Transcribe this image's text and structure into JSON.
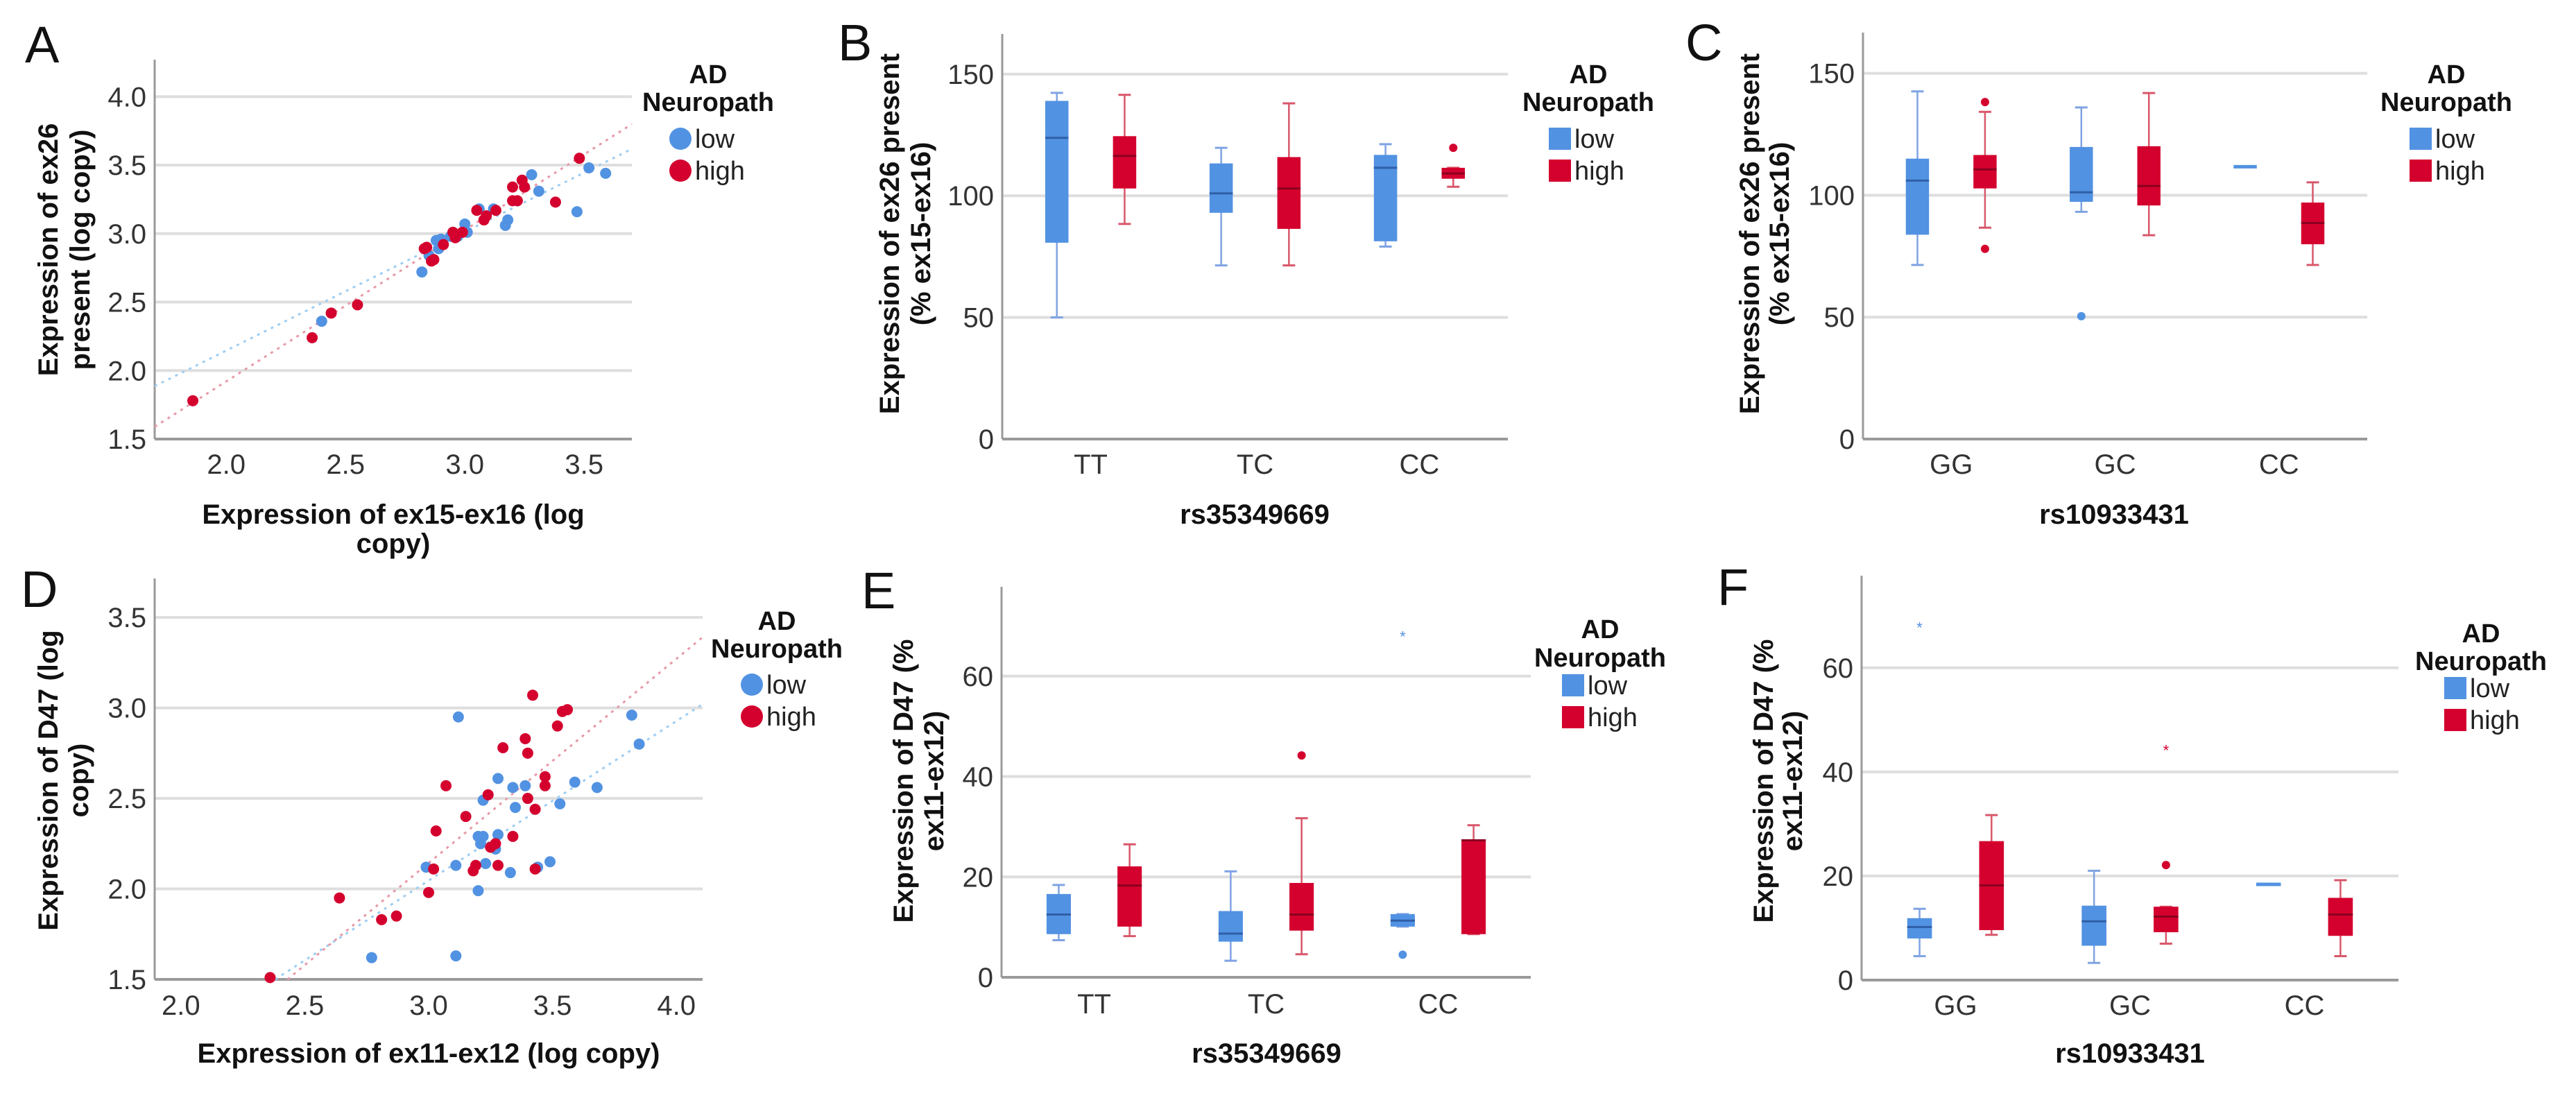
{
  "colors": {
    "low": "#5292e2",
    "high": "#d4002e",
    "low_whisker": "#7fa3e3",
    "high_whisker": "#d8576a",
    "low_fit": "#9fcdf2",
    "high_fit": "#e79aa8",
    "grid": "#dedede",
    "axis": "#9a9a9a"
  },
  "chart_data": [
    {
      "panel": "A",
      "type": "scatter",
      "xlabel": [
        "Expression of ex15-ex16 (log",
        "copy)"
      ],
      "ylabel": [
        "Expression of ex26",
        "present (log copy)"
      ],
      "xlim": [
        1.7,
        3.7
      ],
      "ylim": [
        1.5,
        4.27
      ],
      "x_ticks": [
        2.0,
        2.5,
        3.0,
        3.5
      ],
      "x_tick_labels": [
        "2.0",
        "2.5",
        "3.0",
        "3.5"
      ],
      "y_ticks": [
        1.5,
        2.0,
        2.5,
        3.0,
        3.5,
        4.0
      ],
      "y_tick_labels": [
        "1.5",
        "2.0",
        "2.5",
        "3.0",
        "3.5",
        "4.0"
      ],
      "grid": true,
      "legend": {
        "title": [
          "AD",
          "Neuropath"
        ],
        "placement": "right",
        "items": [
          "low",
          "high"
        ]
      },
      "series": [
        {
          "name": "low",
          "points": [
            [
              2.4,
              2.36
            ],
            [
              2.82,
              2.72
            ],
            [
              2.85,
              2.84
            ],
            [
              2.88,
              2.95
            ],
            [
              2.9,
              2.96
            ],
            [
              2.89,
              2.89
            ],
            [
              2.94,
              2.98
            ],
            [
              2.97,
              2.98
            ],
            [
              3.0,
              3.07
            ],
            [
              3.01,
              3.01
            ],
            [
              3.06,
              3.18
            ],
            [
              3.12,
              3.18
            ],
            [
              3.17,
              3.06
            ],
            [
              3.18,
              3.1
            ],
            [
              3.28,
              3.43
            ],
            [
              3.31,
              3.31
            ],
            [
              3.47,
              3.16
            ],
            [
              3.52,
              3.48
            ],
            [
              3.59,
              3.44
            ]
          ],
          "fit": {
            "slope": 0.866,
            "intercept": 0.414
          }
        },
        {
          "name": "high",
          "points": [
            [
              1.86,
              1.78
            ],
            [
              2.36,
              2.24
            ],
            [
              2.44,
              2.42
            ],
            [
              2.55,
              2.48
            ],
            [
              2.83,
              2.89
            ],
            [
              2.84,
              2.9
            ],
            [
              2.86,
              2.8
            ],
            [
              2.87,
              2.81
            ],
            [
              2.91,
              2.92
            ],
            [
              2.95,
              3.01
            ],
            [
              2.96,
              2.97
            ],
            [
              2.99,
              3.01
            ],
            [
              3.05,
              3.17
            ],
            [
              3.08,
              3.1
            ],
            [
              3.09,
              3.13
            ],
            [
              3.13,
              3.17
            ],
            [
              3.2,
              3.24
            ],
            [
              3.22,
              3.24
            ],
            [
              3.2,
              3.34
            ],
            [
              3.24,
              3.39
            ],
            [
              3.25,
              3.34
            ],
            [
              3.38,
              3.23
            ],
            [
              3.48,
              3.55
            ]
          ],
          "fit": {
            "slope": 1.105,
            "intercept": -0.289
          }
        }
      ]
    },
    {
      "panel": "B",
      "type": "boxplot",
      "xlabel": [
        "rs35349669"
      ],
      "ylabel": [
        "Expression of ex26 present",
        "(% ex15-ex16)"
      ],
      "categories": [
        "TT",
        "TC",
        "CC"
      ],
      "ylim": [
        0,
        166.5
      ],
      "y_ticks": [
        0,
        50,
        100,
        150
      ],
      "y_tick_labels": [
        "0",
        "50",
        "100",
        "150"
      ],
      "grid": true,
      "legend": {
        "title": [
          "AD",
          "Neuropath"
        ],
        "placement": "right",
        "items": [
          "low",
          "high"
        ]
      },
      "series": [
        {
          "name": "low",
          "boxes": [
            {
              "min": 50,
              "q1": 80.7,
              "median": 123.8,
              "q3": 139,
              "max": 142.3,
              "outliers": []
            },
            {
              "min": 71.4,
              "q1": 93,
              "median": 101,
              "q3": 113.3,
              "max": 119.7,
              "outliers": []
            },
            {
              "min": 79.1,
              "q1": 81.3,
              "median": 111.5,
              "q3": 116.8,
              "max": 121.2,
              "outliers": []
            }
          ]
        },
        {
          "name": "high",
          "boxes": [
            {
              "min": 88.4,
              "q1": 103,
              "median": 116.4,
              "q3": 124.5,
              "max": 141.5,
              "outliers": []
            },
            {
              "min": 71.4,
              "q1": 86.4,
              "median": 103,
              "q3": 115.9,
              "max": 138,
              "outliers": []
            },
            {
              "min": 103.7,
              "q1": 107,
              "median": 109.2,
              "q3": 111.5,
              "max": 111.5,
              "outliers": [
                {
                  "value": 119.7,
                  "marker": "circle"
                }
              ]
            }
          ]
        }
      ]
    },
    {
      "panel": "C",
      "type": "boxplot",
      "xlabel": [
        "rs10933431"
      ],
      "ylabel": [
        "Expression of ex26 present",
        "(% ex15-ex16)"
      ],
      "categories": [
        "GG",
        "GC",
        "CC"
      ],
      "ylim": [
        0,
        166.7
      ],
      "y_ticks": [
        0,
        50,
        100,
        150
      ],
      "y_tick_labels": [
        "0",
        "50",
        "100",
        "150"
      ],
      "grid": true,
      "legend": {
        "title": [
          "AD",
          "Neuropath"
        ],
        "placement": "right",
        "items": [
          "low",
          "high"
        ]
      },
      "series": [
        {
          "name": "low",
          "boxes": [
            {
              "min": 71.4,
              "q1": 83.8,
              "median": 106,
              "q3": 115,
              "max": 142.6,
              "outliers": []
            },
            {
              "min": 93.2,
              "q1": 97.3,
              "median": 101.2,
              "q3": 119.8,
              "max": 136,
              "outliers": [
                {
                  "value": 50.4,
                  "marker": "circle"
                }
              ]
            },
            {
              "min": 111.7,
              "q1": 111.7,
              "median": 111.7,
              "q3": 111.7,
              "max": 111.7,
              "outliers": []
            }
          ]
        },
        {
          "name": "high",
          "boxes": [
            {
              "min": 86.7,
              "q1": 102.8,
              "median": 110.6,
              "q3": 116.5,
              "max": 134.2,
              "outliers": [
                {
                  "value": 138.2,
                  "marker": "circle"
                },
                {
                  "value": 78,
                  "marker": "circle"
                }
              ]
            },
            {
              "min": 83.6,
              "q1": 95.8,
              "median": 103.8,
              "q3": 120.1,
              "max": 141.9,
              "outliers": []
            },
            {
              "min": 71.4,
              "q1": 79.9,
              "median": 88.6,
              "q3": 97,
              "max": 105.3,
              "outliers": []
            }
          ]
        }
      ]
    },
    {
      "panel": "D",
      "type": "scatter",
      "xlabel": [
        "Expression of ex11-ex12 (log copy)"
      ],
      "ylabel": [
        "Expression of D47 (log",
        "copy)"
      ],
      "xlim": [
        1.894,
        4.106
      ],
      "ylim": [
        1.5,
        3.715
      ],
      "x_ticks": [
        2.0,
        2.5,
        3.0,
        3.5,
        4.0
      ],
      "x_tick_labels": [
        "2.0",
        "2.5",
        "3.0",
        "3.5",
        "4.0"
      ],
      "y_ticks": [
        1.5,
        2.0,
        2.5,
        3.0,
        3.5
      ],
      "y_tick_labels": [
        "1.5",
        "2.0",
        "2.5",
        "3.0",
        "3.5"
      ],
      "grid": true,
      "legend": {
        "title": [
          "AD",
          "Neuropath"
        ],
        "placement": "right",
        "items": [
          "low",
          "high"
        ]
      },
      "series": [
        {
          "name": "low",
          "points": [
            [
              3.12,
              2.95
            ],
            [
              2.77,
              1.62
            ],
            [
              3.11,
              1.63
            ],
            [
              3.82,
              2.96
            ],
            [
              3.85,
              2.8
            ],
            [
              3.28,
              2.61
            ],
            [
              3.34,
              2.56
            ],
            [
              3.39,
              2.57
            ],
            [
              3.22,
              2.49
            ],
            [
              3.35,
              2.45
            ],
            [
              3.53,
              2.47
            ],
            [
              3.59,
              2.59
            ],
            [
              3.68,
              2.56
            ],
            [
              3.2,
              2.29
            ],
            [
              3.22,
              2.29
            ],
            [
              3.28,
              2.3
            ],
            [
              3.21,
              2.25
            ],
            [
              3.27,
              2.22
            ],
            [
              2.99,
              2.12
            ],
            [
              3.11,
              2.13
            ],
            [
              3.23,
              2.14
            ],
            [
              3.33,
              2.09
            ],
            [
              3.44,
              2.12
            ],
            [
              3.49,
              2.15
            ],
            [
              3.2,
              1.99
            ]
          ],
          "fit": {
            "slope": 0.881,
            "intercept": -0.597
          }
        },
        {
          "name": "high",
          "points": [
            [
              2.36,
              1.51
            ],
            [
              2.64,
              1.95
            ],
            [
              2.81,
              1.83
            ],
            [
              2.87,
              1.85
            ],
            [
              3.0,
              1.98
            ],
            [
              3.02,
              2.11
            ],
            [
              3.03,
              2.32
            ],
            [
              3.07,
              2.57
            ],
            [
              3.15,
              2.4
            ],
            [
              3.18,
              2.1
            ],
            [
              3.19,
              2.13
            ],
            [
              3.24,
              2.52
            ],
            [
              3.25,
              2.23
            ],
            [
              3.27,
              2.25
            ],
            [
              3.28,
              2.13
            ],
            [
              3.3,
              2.78
            ],
            [
              3.34,
              2.29
            ],
            [
              3.39,
              2.83
            ],
            [
              3.4,
              2.75
            ],
            [
              3.4,
              2.5
            ],
            [
              3.42,
              3.07
            ],
            [
              3.43,
              2.44
            ],
            [
              3.43,
              2.11
            ],
            [
              3.47,
              2.62
            ],
            [
              3.47,
              2.57
            ],
            [
              3.52,
              2.9
            ],
            [
              3.54,
              2.98
            ],
            [
              3.56,
              2.99
            ]
          ],
          "fit": {
            "slope": 1.128,
            "intercept": -1.241
          }
        }
      ]
    },
    {
      "panel": "E",
      "type": "boxplot",
      "xlabel": [
        "rs35349669"
      ],
      "ylabel": [
        "Expression of D47 (%",
        "ex11-ex12)"
      ],
      "categories": [
        "TT",
        "TC",
        "CC"
      ],
      "ylim": [
        0,
        77.8
      ],
      "y_ticks": [
        0,
        20,
        40,
        60
      ],
      "y_tick_labels": [
        "0",
        "20",
        "40",
        "60"
      ],
      "grid": true,
      "legend": {
        "title": [
          "AD",
          "Neuropath"
        ],
        "placement": "right",
        "items": [
          "low",
          "high"
        ]
      },
      "series": [
        {
          "name": "low",
          "boxes": [
            {
              "min": 7.4,
              "q1": 8.6,
              "median": 12.5,
              "q3": 16.6,
              "max": 18.4,
              "outliers": []
            },
            {
              "min": 3.3,
              "q1": 7.1,
              "median": 8.7,
              "q3": 13.2,
              "max": 21.1,
              "outliers": []
            },
            {
              "min": 10.1,
              "q1": 10.1,
              "median": 11.3,
              "q3": 12.6,
              "max": 12.6,
              "outliers": [
                {
                  "value": 4.5,
                  "marker": "circle"
                },
                {
                  "value": 67.9,
                  "marker": "star"
                }
              ]
            }
          ]
        },
        {
          "name": "high",
          "boxes": [
            {
              "min": 8.2,
              "q1": 10.1,
              "median": 18.3,
              "q3": 22.1,
              "max": 26.5,
              "outliers": []
            },
            {
              "min": 4.6,
              "q1": 9.3,
              "median": 12.5,
              "q3": 18.8,
              "max": 31.7,
              "outliers": [
                {
                  "value": 44.2,
                  "marker": "circle"
                }
              ]
            },
            {
              "min": 8.6,
              "q1": 8.6,
              "median": 27.3,
              "q3": 27.5,
              "max": 30.3,
              "outliers": []
            }
          ]
        }
      ]
    },
    {
      "panel": "F",
      "type": "boxplot",
      "xlabel": [
        "rs10933431"
      ],
      "ylabel": [
        "Expression of D47 (%",
        "ex11-ex12)"
      ],
      "categories": [
        "GG",
        "GC",
        "CC"
      ],
      "ylim": [
        0,
        77.7
      ],
      "y_ticks": [
        0,
        20,
        40,
        60
      ],
      "y_tick_labels": [
        "0",
        "20",
        "40",
        "60"
      ],
      "grid": true,
      "legend": {
        "title": [
          "AD",
          "Neuropath"
        ],
        "placement": "right",
        "items": [
          "low",
          "high"
        ]
      },
      "series": [
        {
          "name": "low",
          "boxes": [
            {
              "min": 4.6,
              "q1": 8.0,
              "median": 10.2,
              "q3": 11.9,
              "max": 13.7,
              "outliers": [
                {
                  "value": 67.8,
                  "marker": "star"
                }
              ]
            },
            {
              "min": 3.3,
              "q1": 6.6,
              "median": 11.3,
              "q3": 14.3,
              "max": 21.0,
              "outliers": []
            },
            {
              "min": 18.4,
              "q1": 18.4,
              "median": 18.4,
              "q3": 18.4,
              "max": 18.4,
              "outliers": []
            }
          ]
        },
        {
          "name": "high",
          "boxes": [
            {
              "min": 8.7,
              "q1": 9.6,
              "median": 18.2,
              "q3": 26.7,
              "max": 31.7,
              "outliers": []
            },
            {
              "min": 7.0,
              "q1": 9.2,
              "median": 12.2,
              "q3": 14.1,
              "max": 14.1,
              "outliers": [
                {
                  "value": 22.1,
                  "marker": "circle"
                },
                {
                  "value": 44.2,
                  "marker": "star"
                }
              ]
            },
            {
              "min": 4.6,
              "q1": 8.5,
              "median": 12.6,
              "q3": 15.8,
              "max": 19.2,
              "outliers": []
            }
          ]
        }
      ]
    }
  ]
}
